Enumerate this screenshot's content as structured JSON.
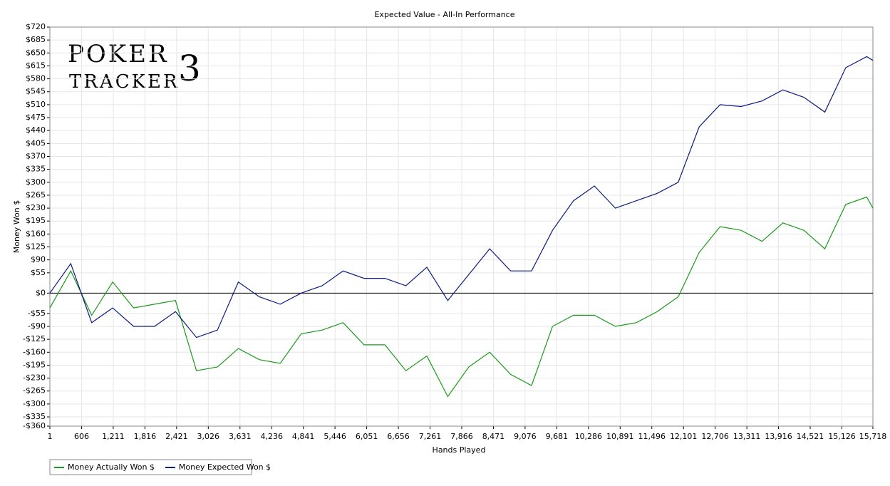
{
  "chart_data": {
    "type": "line",
    "title": "Expected Value - All-In Performance",
    "x_label": "Hands Played",
    "y_label": "Money Won $",
    "watermark": [
      "POKER",
      "TRACKER",
      "3"
    ],
    "x": [
      1,
      400,
      800,
      1200,
      1600,
      2000,
      2400,
      2800,
      3200,
      3600,
      4000,
      4400,
      4800,
      5200,
      5600,
      6000,
      6400,
      6800,
      7200,
      7600,
      8000,
      8400,
      8800,
      9200,
      9600,
      10000,
      10400,
      10800,
      11200,
      11600,
      12000,
      12400,
      12800,
      13200,
      13600,
      14000,
      14400,
      14800,
      15200,
      15600,
      15718
    ],
    "series": [
      {
        "name": "Money Actually Won $",
        "color": "#1a9a1a",
        "values": [
          -40,
          60,
          -60,
          30,
          -40,
          -30,
          -20,
          -210,
          -200,
          -150,
          -180,
          -190,
          -110,
          -100,
          -80,
          -140,
          -140,
          -210,
          -170,
          -280,
          -200,
          -160,
          -220,
          -250,
          -90,
          -60,
          -60,
          -90,
          -80,
          -50,
          -10,
          110,
          180,
          170,
          140,
          190,
          170,
          120,
          240,
          260,
          230
        ]
      },
      {
        "name": "Money Expected Won $",
        "color": "#0a1a80",
        "values": [
          0,
          80,
          -80,
          -40,
          -90,
          -90,
          -50,
          -120,
          -100,
          30,
          -10,
          -30,
          0,
          20,
          60,
          40,
          40,
          20,
          70,
          -20,
          50,
          120,
          60,
          60,
          170,
          250,
          290,
          230,
          250,
          270,
          300,
          450,
          510,
          505,
          520,
          550,
          530,
          490,
          610,
          640,
          630
        ]
      }
    ],
    "xlim": [
      1,
      15718
    ],
    "xticks": [
      1,
      606,
      {
        "value": 1211,
        "label": "1,211"
      },
      {
        "value": 1816,
        "label": "1,816"
      },
      {
        "value": 2421,
        "label": "2,421"
      },
      {
        "value": 3026,
        "label": "3,026"
      },
      {
        "value": 3631,
        "label": "3,631"
      },
      {
        "value": 4236,
        "label": "4,236"
      },
      {
        "value": 4841,
        "label": "4,841"
      },
      {
        "value": 5446,
        "label": "5,446"
      },
      {
        "value": 6051,
        "label": "6,051"
      },
      {
        "value": 6656,
        "label": "6,656"
      },
      {
        "value": 7261,
        "label": "7,261"
      },
      {
        "value": 7866,
        "label": "7,866"
      },
      {
        "value": 8471,
        "label": "8,471"
      },
      {
        "value": 9076,
        "label": "9,076"
      },
      {
        "value": 9681,
        "label": "9,681"
      },
      {
        "value": 10286,
        "label": "10,286"
      },
      {
        "value": 10891,
        "label": "10,891"
      },
      {
        "value": 11496,
        "label": "11,496"
      },
      {
        "value": 12101,
        "label": "12,101"
      },
      {
        "value": 12706,
        "label": "12,706"
      },
      {
        "value": 13311,
        "label": "13,311"
      },
      {
        "value": 13916,
        "label": "13,916"
      },
      {
        "value": 14521,
        "label": "14,521"
      },
      {
        "value": 15126,
        "label": "15,126"
      },
      {
        "value": 15718,
        "label": "15,718"
      }
    ],
    "ylim": [
      -360,
      720
    ],
    "yticks": [
      {
        "value": 720,
        "label": "$720"
      },
      {
        "value": 685,
        "label": "$685"
      },
      {
        "value": 650,
        "label": "$650"
      },
      {
        "value": 615,
        "label": "$615"
      },
      {
        "value": 580,
        "label": "$580"
      },
      {
        "value": 545,
        "label": "$545"
      },
      {
        "value": 510,
        "label": "$510"
      },
      {
        "value": 475,
        "label": "$475"
      },
      {
        "value": 440,
        "label": "$440"
      },
      {
        "value": 405,
        "label": "$405"
      },
      {
        "value": 370,
        "label": "$370"
      },
      {
        "value": 335,
        "label": "$335"
      },
      {
        "value": 300,
        "label": "$300"
      },
      {
        "value": 265,
        "label": "$265"
      },
      {
        "value": 230,
        "label": "$230"
      },
      {
        "value": 195,
        "label": "$195"
      },
      {
        "value": 160,
        "label": "$160"
      },
      {
        "value": 125,
        "label": "$125"
      },
      {
        "value": 90,
        "label": "$90"
      },
      {
        "value": 55,
        "label": "$55"
      },
      {
        "value": 0,
        "label": "$0"
      },
      {
        "value": -55,
        "label": "-$55"
      },
      {
        "value": -90,
        "label": "-$90"
      },
      {
        "value": -125,
        "label": "-$125"
      },
      {
        "value": -160,
        "label": "-$160"
      },
      {
        "value": -195,
        "label": "-$195"
      },
      {
        "value": -230,
        "label": "-$230"
      },
      {
        "value": -265,
        "label": "-$265"
      },
      {
        "value": -300,
        "label": "-$300"
      },
      {
        "value": -335,
        "label": "-$335"
      },
      {
        "value": -360,
        "label": "-$360"
      }
    ],
    "grid": true,
    "legend": "bottom-left"
  }
}
